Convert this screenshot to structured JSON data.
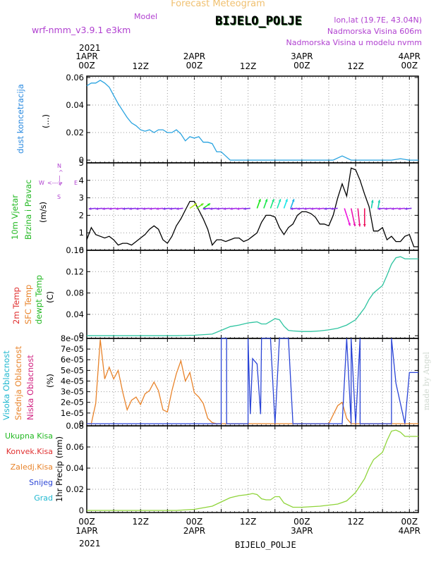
{
  "header": {
    "title": "Forecast Meteogram",
    "model_label": "Model",
    "model_name": "wrf-nmm_v3.9.1 e3km",
    "station": "BIJELO_POLJE",
    "lonlat": "lon,lat (19.7E, 43.04N)",
    "elevation": "Nadmorska Visina 606m",
    "model_elevation": "Nadmorska Visina u modelu nvmm",
    "watermark": "made by Angel",
    "footer_station": "BIJELO_POLJE"
  },
  "time_axis": {
    "year": "2021",
    "ticks": [
      {
        "top": "1APR",
        "bottom": "00Z",
        "hour": 0
      },
      {
        "top": "",
        "bottom": "12Z",
        "hour": 12
      },
      {
        "top": "2APR",
        "bottom": "00Z",
        "hour": 24
      },
      {
        "top": "",
        "bottom": "12Z",
        "hour": 36
      },
      {
        "top": "3APR",
        "bottom": "00Z",
        "hour": 48
      },
      {
        "top": "",
        "bottom": "12Z",
        "hour": 60
      },
      {
        "top": "4APR",
        "bottom": "00Z",
        "hour": 72
      }
    ]
  },
  "panels": {
    "dust": {
      "label": "dust koncetracija",
      "unit": "(...)"
    },
    "wind": {
      "label1": "10m Vjetar",
      "label2": "Brzina i Pravac",
      "unit": "(m/s)",
      "compass": {
        "n": "N",
        "s": "S",
        "w": "W",
        "e": "E",
        "arrow": "<--->"
      }
    },
    "temp": {
      "label1": "2m Temp",
      "label2": "SFC Temp",
      "label3": "dewpt Temp",
      "unit": "(C)"
    },
    "cloud": {
      "label1": "Visoka Oblacnost",
      "label2": "Srednja Oblacnost",
      "label3": "Niska Oblacnost",
      "unit": "(%)"
    },
    "precip": {
      "labels": [
        "Ukupna Kisa",
        "Konvek.Kisa",
        "Zaledj.Kisa",
        "Snijeg",
        "Grad"
      ],
      "unit": "1hr Precip (mm)"
    }
  },
  "colors": {
    "dust": "#29a3e0",
    "wind_speed": "#000000",
    "temp": "#2ec4a0",
    "cloud_mid": "#e8832a",
    "cloud_high": "#2a44d6",
    "precip": "#8fd43a",
    "title": "#f0c070",
    "purple": "#b040d0",
    "label_blue": "#2a8ae0",
    "label_green": "#22b822",
    "label_red": "#e03030",
    "label_orange": "#e8832a",
    "label_teal": "#20a890",
    "label_magenta": "#d02080",
    "label_navy": "#2a44d6",
    "label_cyan": "#20b8d0"
  },
  "chart_data": [
    {
      "type": "line",
      "title": "dust koncetracija",
      "ylabel": "(...)",
      "ylim": [
        -0.002,
        0.061
      ],
      "yticks": [
        0,
        0.02,
        0.04,
        0.06
      ],
      "ytick_labels": [
        "0",
        "0.02",
        "0.04",
        "0.06"
      ],
      "series": [
        {
          "name": "dust koncetracija",
          "x": [
            0,
            1,
            2,
            3,
            4,
            5,
            6,
            7,
            8,
            9,
            10,
            11,
            12,
            13,
            14,
            15,
            16,
            17,
            18,
            19,
            20,
            21,
            22,
            23,
            24,
            25,
            26,
            27,
            28,
            29,
            30,
            31,
            32,
            33,
            34,
            35,
            36,
            40,
            48,
            55,
            57,
            59,
            62,
            68,
            70,
            72,
            74
          ],
          "y": [
            0.054,
            0.056,
            0.056,
            0.058,
            0.056,
            0.053,
            0.047,
            0.041,
            0.036,
            0.031,
            0.027,
            0.025,
            0.022,
            0.021,
            0.022,
            0.02,
            0.022,
            0.022,
            0.02,
            0.02,
            0.022,
            0.019,
            0.014,
            0.017,
            0.016,
            0.017,
            0.013,
            0.013,
            0.012,
            0.006,
            0.006,
            0.003,
            0.0,
            0.0,
            0.0,
            0.0,
            0.0,
            0.0,
            0.0,
            0.0,
            0.003,
            0.0,
            0.0,
            0.0,
            0.001,
            0.0,
            0.0
          ]
        }
      ]
    },
    {
      "type": "line",
      "title": "10m Vjetar Brzina i Pravac",
      "ylabel": "(m/s)",
      "ylim": [
        0,
        5
      ],
      "yticks": [
        0,
        1,
        2,
        3,
        4,
        5
      ],
      "ytick_labels": [
        "0",
        "1",
        "2",
        "3",
        "4",
        "5"
      ],
      "series": [
        {
          "name": "Brzina",
          "x": [
            0,
            1,
            2,
            3,
            4,
            5,
            6,
            7,
            8,
            9,
            10,
            11,
            12,
            13,
            14,
            15,
            16,
            17,
            18,
            19,
            20,
            21,
            22,
            23,
            24,
            25,
            26,
            27,
            28,
            29,
            30,
            31,
            32,
            33,
            34,
            35,
            36,
            37,
            38,
            39,
            40,
            41,
            42,
            43,
            44,
            45,
            46,
            47,
            48,
            49,
            50,
            51,
            52,
            53,
            54,
            55,
            56,
            57,
            58,
            59,
            60,
            61,
            62,
            63,
            64,
            65,
            66,
            67,
            68,
            69,
            70,
            71,
            72,
            73,
            74
          ],
          "y": [
            0.6,
            1.3,
            0.9,
            0.8,
            0.7,
            0.8,
            0.6,
            0.3,
            0.4,
            0.4,
            0.3,
            0.5,
            0.7,
            0.9,
            1.2,
            1.4,
            1.2,
            0.6,
            0.4,
            0.8,
            1.4,
            1.8,
            2.3,
            2.8,
            2.8,
            2.3,
            1.8,
            1.2,
            0.3,
            0.6,
            0.6,
            0.5,
            0.6,
            0.7,
            0.7,
            0.5,
            0.6,
            0.8,
            1.0,
            1.6,
            2.0,
            2.0,
            1.9,
            1.3,
            0.9,
            1.3,
            1.5,
            2.0,
            2.2,
            2.2,
            2.1,
            1.9,
            1.5,
            1.5,
            1.4,
            2.0,
            3.0,
            3.8,
            3.1,
            4.7,
            4.6,
            4.0,
            3.2,
            2.5,
            1.1,
            1.1,
            1.3,
            0.6,
            0.8,
            0.5,
            0.5,
            0.8,
            0.9,
            0.2,
            0.2
          ]
        }
      ]
    },
    {
      "type": "line",
      "title": "2m Temp / SFC Temp / dewpt Temp",
      "ylabel": "(C)",
      "ylim": [
        -0.005,
        0.16
      ],
      "yticks": [
        0,
        0.04,
        0.08,
        0.12,
        0.16
      ],
      "ytick_labels": [
        "0",
        "0.04",
        "0.08",
        "0.12",
        "0.16"
      ],
      "series": [
        {
          "name": "dewpt Temp",
          "x": [
            0,
            12,
            20,
            24,
            28,
            30,
            32,
            34,
            36,
            37,
            38,
            39,
            40,
            41,
            42,
            43,
            44,
            45,
            46,
            48,
            50,
            52,
            54,
            56,
            58,
            60,
            62,
            63,
            64,
            66,
            67,
            68,
            69,
            70,
            71,
            72,
            74
          ],
          "y": [
            0.0,
            0.0,
            0.0,
            0.001,
            0.003,
            0.01,
            0.017,
            0.02,
            0.024,
            0.025,
            0.026,
            0.022,
            0.022,
            0.027,
            0.032,
            0.03,
            0.018,
            0.01,
            0.009,
            0.008,
            0.008,
            0.009,
            0.011,
            0.014,
            0.02,
            0.03,
            0.052,
            0.068,
            0.08,
            0.094,
            0.113,
            0.134,
            0.146,
            0.148,
            0.144,
            0.144,
            0.144
          ]
        }
      ]
    },
    {
      "type": "line",
      "title": "Visoka / Srednja / Niska Oblacnost",
      "ylabel": "(%)",
      "ylim": [
        -2e-06,
        8e-05
      ],
      "yticks": [
        0,
        1e-05,
        2e-05,
        3e-05,
        4e-05,
        5e-05,
        6e-05,
        7e-05,
        8e-05
      ],
      "ytick_labels": [
        "0",
        "1e-05",
        "2e-05",
        "3e-05",
        "4e-05",
        "5e-05",
        "6e-05",
        "7e-05",
        "8e-05"
      ],
      "series": [
        {
          "name": "Srednja Oblacnost",
          "x": [
            0,
            1,
            2,
            3,
            4,
            5,
            6,
            7,
            8,
            9,
            10,
            11,
            12,
            13,
            14,
            15,
            16,
            17,
            18,
            19,
            20,
            21,
            22,
            23,
            24,
            25,
            26,
            27,
            28,
            29,
            30,
            31,
            34,
            40,
            48,
            54,
            56,
            57,
            58,
            59,
            60,
            74
          ],
          "y": [
            0.0,
            0.0,
            1.9e-05,
            7.9e-05,
            4.2e-05,
            5.3e-05,
            4.2e-05,
            5e-05,
            3e-05,
            1.3e-05,
            2.2e-05,
            2.5e-05,
            1.8e-05,
            2.8e-05,
            3.1e-05,
            3.9e-05,
            3.1e-05,
            1.3e-05,
            1.1e-05,
            3.1e-05,
            4.7e-05,
            5.9e-05,
            4e-05,
            4.8e-05,
            2.9e-05,
            2.5e-05,
            1.9e-05,
            5e-06,
            1e-06,
            0.0,
            0.0,
            0.0,
            0.0,
            0.0,
            0.0,
            0.0,
            1.7e-05,
            2e-05,
            5e-06,
            0.0,
            0.0,
            0.0
          ]
        },
        {
          "name": "Visoka Oblacnost",
          "x": [
            0,
            30,
            30.01,
            31.2,
            31.21,
            36,
            36,
            36.5,
            37,
            38,
            38.8,
            39,
            41,
            42,
            43,
            45,
            46,
            48,
            57,
            58,
            59,
            59,
            60,
            61,
            61,
            68,
            68,
            69,
            71,
            72,
            74
          ],
          "y": [
            0.0,
            0.0,
            8e-05,
            8e-05,
            0.0,
            0.0,
            8e-05,
            9e-06,
            6.1e-05,
            5.6e-05,
            9e-06,
            8e-05,
            8e-05,
            0.0,
            8e-05,
            8e-05,
            0.0,
            0.0,
            0.0,
            8e-05,
            0.0,
            8e-05,
            0.0,
            8e-05,
            0.0,
            0.0,
            8e-05,
            3.8e-05,
            0.0,
            4.8e-05,
            4.8e-05
          ]
        }
      ]
    },
    {
      "type": "line",
      "title": "1hr Precip",
      "ylabel": "1hr Precip (mm)",
      "ylim": [
        -0.002,
        0.08
      ],
      "yticks": [
        0,
        0.02,
        0.04,
        0.06,
        0.08
      ],
      "ytick_labels": [
        "0",
        "0.02",
        "0.04",
        "0.06",
        "0.08"
      ],
      "series": [
        {
          "name": "Ukupna Kisa",
          "x": [
            0,
            20,
            24,
            28,
            30,
            32,
            34,
            36,
            37,
            38,
            39,
            40,
            41,
            42,
            43,
            44,
            46,
            48,
            52,
            56,
            58,
            60,
            62,
            63,
            64,
            66,
            67,
            68,
            69,
            70,
            71,
            72,
            74
          ],
          "y": [
            0.0,
            0.0,
            0.001,
            0.004,
            0.008,
            0.012,
            0.014,
            0.015,
            0.016,
            0.015,
            0.011,
            0.01,
            0.01,
            0.013,
            0.013,
            0.007,
            0.003,
            0.003,
            0.004,
            0.006,
            0.009,
            0.017,
            0.03,
            0.04,
            0.048,
            0.055,
            0.066,
            0.075,
            0.076,
            0.074,
            0.07,
            0.07,
            0.07
          ]
        }
      ]
    }
  ]
}
